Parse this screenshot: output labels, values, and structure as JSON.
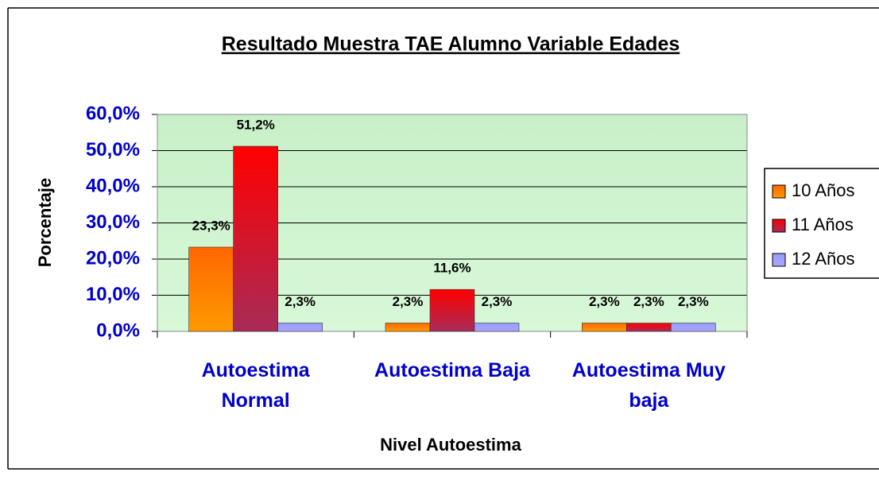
{
  "chart_data": {
    "type": "bar",
    "title": "Resultado Muestra TAE Alumno Variable Edades",
    "x_label": "Nivel Autoestima",
    "y_label": "Porcentaje",
    "categories": [
      "Autoestima Normal",
      "Autoestima Baja",
      "Autoestima Muy baja"
    ],
    "series": [
      {
        "name": "10 Años",
        "color": "#ff6600",
        "values": [
          23.3,
          2.3,
          2.3
        ],
        "value_labels": [
          "23,3%",
          "2,3%",
          "2,3%"
        ]
      },
      {
        "name": "11 Años",
        "color": "#ff0000",
        "values": [
          51.2,
          11.6,
          2.3
        ],
        "value_labels": [
          "51,2%",
          "11,6%",
          "2,3%"
        ]
      },
      {
        "name": "12 Años",
        "color": "#9999ff",
        "values": [
          2.3,
          2.3,
          2.3
        ],
        "value_labels": [
          "2,3%",
          "2,3%",
          "2,3%"
        ]
      }
    ],
    "ylim": [
      0,
      60
    ],
    "yticks": [
      {
        "value": 0,
        "label": "0,0%"
      },
      {
        "value": 10,
        "label": "10,0%"
      },
      {
        "value": 20,
        "label": "20,0%"
      },
      {
        "value": 30,
        "label": "30,0%"
      },
      {
        "value": 40,
        "label": "40,0%"
      },
      {
        "value": 50,
        "label": "50,0%"
      },
      {
        "value": 60,
        "label": "60,0%"
      }
    ],
    "grid": true,
    "legend": "right"
  }
}
